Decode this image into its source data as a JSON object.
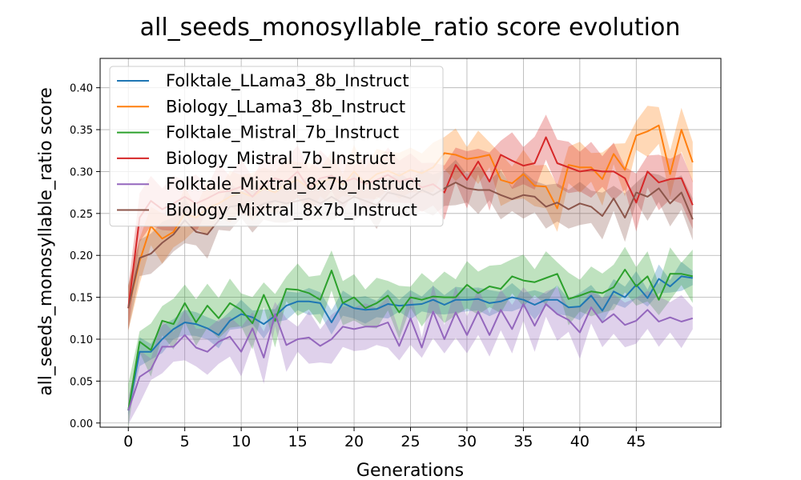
{
  "chart_data": {
    "type": "line",
    "title": "all_seeds_monosyllable_ratio score evolution",
    "xlabel": "Generations",
    "ylabel": "all_seeds_monosyllable_ratio score",
    "xlim": [
      -2.5,
      52.5
    ],
    "ylim": [
      -0.005,
      0.435
    ],
    "xticks": [
      0,
      5,
      10,
      15,
      20,
      25,
      30,
      35,
      40,
      45
    ],
    "xtick_labels": [
      "0",
      "5",
      "10",
      "15",
      "20",
      "25",
      "30",
      "35",
      "40",
      "45"
    ],
    "yticks": [
      0.0,
      0.05,
      0.1,
      0.15,
      0.2,
      0.25,
      0.3,
      0.35,
      0.4
    ],
    "ytick_labels": [
      "0.00",
      "0.05",
      "0.10",
      "0.15",
      "0.20",
      "0.25",
      "0.30",
      "0.35",
      "0.40"
    ],
    "grid": true,
    "legend_position": "top-left",
    "x": [
      0,
      1,
      2,
      3,
      4,
      5,
      6,
      7,
      8,
      9,
      10,
      11,
      12,
      13,
      14,
      15,
      16,
      17,
      18,
      19,
      20,
      21,
      22,
      23,
      24,
      25,
      26,
      27,
      28,
      29,
      30,
      31,
      32,
      33,
      34,
      35,
      36,
      37,
      38,
      39,
      40,
      41,
      42,
      43,
      44,
      45,
      46,
      47,
      48,
      49,
      50
    ],
    "series": [
      {
        "name": "Folktale_LLama3_8b_Instruct",
        "color": "#1f77b4",
        "values": [
          0.015,
          0.085,
          0.085,
          0.1,
          0.112,
          0.12,
          0.118,
          0.113,
          0.105,
          0.122,
          0.13,
          0.126,
          0.118,
          0.128,
          0.14,
          0.145,
          0.145,
          0.143,
          0.12,
          0.143,
          0.137,
          0.135,
          0.136,
          0.142,
          0.14,
          0.141,
          0.142,
          0.147,
          0.141,
          0.147,
          0.147,
          0.148,
          0.143,
          0.145,
          0.15,
          0.147,
          0.141,
          0.147,
          0.147,
          0.138,
          0.139,
          0.152,
          0.134,
          0.157,
          0.15,
          0.165,
          0.149,
          0.172,
          0.163,
          0.175,
          0.173
        ],
        "band": 0.012
      },
      {
        "name": "Biology_LLama3_8b_Instruct",
        "color": "#ff7f0e",
        "values": [
          0.137,
          0.193,
          0.235,
          0.22,
          0.228,
          0.25,
          0.245,
          0.256,
          0.262,
          0.27,
          0.275,
          0.27,
          0.28,
          0.275,
          0.285,
          0.29,
          0.28,
          0.287,
          0.292,
          0.284,
          0.3,
          0.286,
          0.297,
          0.301,
          0.295,
          0.302,
          0.298,
          0.305,
          0.322,
          0.32,
          0.315,
          0.317,
          0.32,
          0.29,
          0.286,
          0.297,
          0.283,
          0.282,
          0.256,
          0.308,
          0.305,
          0.305,
          0.291,
          0.321,
          0.302,
          0.343,
          0.348,
          0.355,
          0.297,
          0.35,
          0.311
        ],
        "band": 0.022
      },
      {
        "name": "Folktale_Mistral_7b_Instruct",
        "color": "#2ca02c",
        "values": [
          0.015,
          0.097,
          0.087,
          0.122,
          0.118,
          0.143,
          0.12,
          0.14,
          0.125,
          0.143,
          0.135,
          0.119,
          0.153,
          0.122,
          0.16,
          0.159,
          0.155,
          0.147,
          0.182,
          0.143,
          0.15,
          0.137,
          0.143,
          0.152,
          0.132,
          0.15,
          0.147,
          0.151,
          0.15,
          0.15,
          0.165,
          0.155,
          0.163,
          0.16,
          0.175,
          0.17,
          0.168,
          0.173,
          0.178,
          0.148,
          0.152,
          0.157,
          0.155,
          0.162,
          0.183,
          0.163,
          0.175,
          0.147,
          0.178,
          0.178,
          0.175
        ],
        "band": 0.022
      },
      {
        "name": "Biology_Mistral_7b_Instruct",
        "color": "#d62728",
        "values": [
          0.137,
          0.245,
          0.265,
          0.255,
          0.262,
          0.27,
          0.262,
          0.268,
          0.275,
          0.277,
          0.282,
          0.27,
          0.285,
          0.292,
          0.288,
          0.3,
          0.28,
          0.292,
          0.295,
          0.287,
          0.292,
          0.285,
          0.29,
          0.296,
          0.288,
          0.292,
          0.281,
          0.285,
          0.275,
          0.308,
          0.29,
          0.312,
          0.288,
          0.32,
          0.313,
          0.307,
          0.31,
          0.341,
          0.31,
          0.305,
          0.3,
          0.302,
          0.3,
          0.3,
          0.292,
          0.263,
          0.3,
          0.287,
          0.291,
          0.292,
          0.26
        ],
        "band": 0.024
      },
      {
        "name": "Folktale_Mixtral_8x7b_Instruct",
        "color": "#9467bd",
        "values": [
          0.015,
          0.055,
          0.064,
          0.091,
          0.091,
          0.105,
          0.09,
          0.085,
          0.097,
          0.103,
          0.085,
          0.113,
          0.078,
          0.13,
          0.093,
          0.1,
          0.102,
          0.092,
          0.1,
          0.115,
          0.112,
          0.115,
          0.115,
          0.12,
          0.092,
          0.125,
          0.09,
          0.133,
          0.1,
          0.132,
          0.105,
          0.133,
          0.105,
          0.135,
          0.112,
          0.142,
          0.116,
          0.142,
          0.13,
          0.123,
          0.108,
          0.138,
          0.12,
          0.13,
          0.117,
          0.122,
          0.135,
          0.121,
          0.126,
          0.121,
          0.125
        ],
        "band": 0.022
      },
      {
        "name": "Biology_Mixtral_8x7b_Instruct",
        "color": "#8c564b",
        "values": [
          0.137,
          0.197,
          0.202,
          0.215,
          0.225,
          0.242,
          0.228,
          0.225,
          0.242,
          0.258,
          0.26,
          0.255,
          0.262,
          0.265,
          0.262,
          0.265,
          0.268,
          0.262,
          0.27,
          0.262,
          0.27,
          0.265,
          0.26,
          0.275,
          0.272,
          0.268,
          0.278,
          0.272,
          0.28,
          0.287,
          0.28,
          0.278,
          0.278,
          0.272,
          0.267,
          0.272,
          0.27,
          0.258,
          0.263,
          0.255,
          0.262,
          0.258,
          0.247,
          0.268,
          0.245,
          0.275,
          0.27,
          0.28,
          0.262,
          0.275,
          0.243
        ],
        "band": 0.02
      }
    ]
  }
}
